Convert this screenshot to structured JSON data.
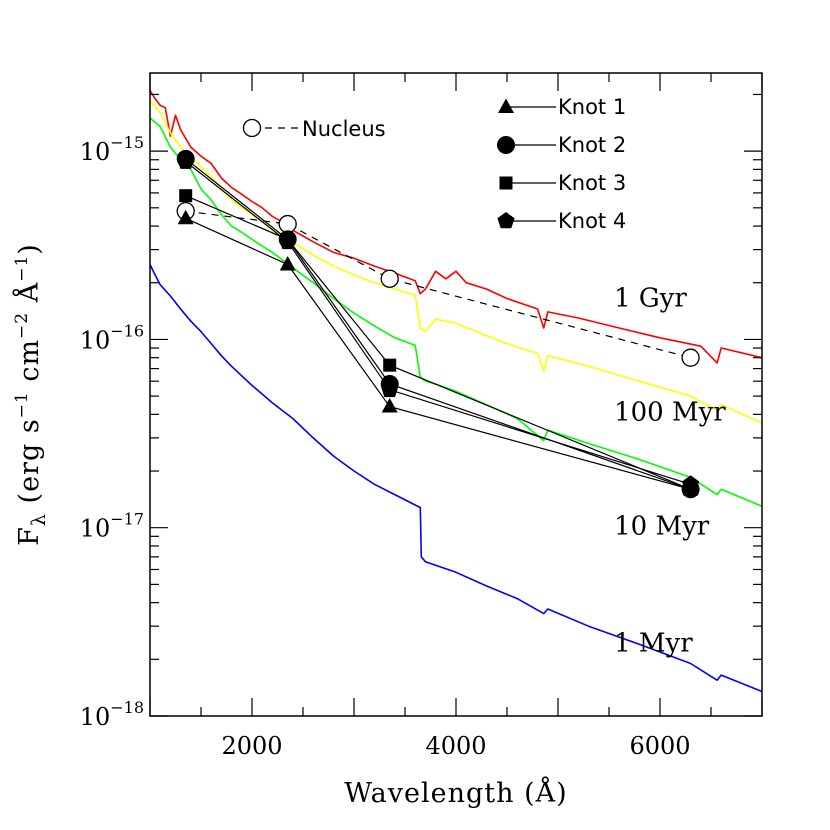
{
  "chart_data": {
    "type": "line",
    "xlabel": "Wavelength (Å)",
    "ylabel_parts": [
      "F",
      "λ",
      " (erg s",
      "−1",
      " cm",
      "−2",
      " Å",
      "−1",
      ")"
    ],
    "xlim": [
      1000,
      7000
    ],
    "ylim": [
      1e-18,
      2.6e-15
    ],
    "yscale": "log",
    "x_ticks": [
      {
        "value": 2000,
        "label": "2000"
      },
      {
        "value": 4000,
        "label": "4000"
      },
      {
        "value": 6000,
        "label": "6000"
      }
    ],
    "y_ticks": [
      {
        "value": 1e-15,
        "base": "10",
        "exp": "−15"
      },
      {
        "value": 1e-16,
        "base": "10",
        "exp": "−16"
      },
      {
        "value": 1e-17,
        "base": "10",
        "exp": "−17"
      },
      {
        "value": 1e-18,
        "base": "10",
        "exp": "−18"
      }
    ],
    "models": [
      {
        "label": "1 Gyr",
        "color": "#ff0000",
        "label_at": [
          5550,
          1.5e-16
        ],
        "points": [
          [
            1000,
            2.1e-15
          ],
          [
            1050,
            1.9e-15
          ],
          [
            1100,
            1.75e-15
          ],
          [
            1150,
            1.7e-15
          ],
          [
            1200,
            1.2e-15
          ],
          [
            1250,
            1.55e-15
          ],
          [
            1300,
            1.3e-15
          ],
          [
            1400,
            1.05e-15
          ],
          [
            1500,
            9.4e-16
          ],
          [
            1600,
            8.6e-16
          ],
          [
            1700,
            7.2e-16
          ],
          [
            1800,
            6.4e-16
          ],
          [
            1900,
            5.9e-16
          ],
          [
            2000,
            5.4e-16
          ],
          [
            2100,
            5e-16
          ],
          [
            2200,
            4.5e-16
          ],
          [
            2300,
            4.2e-16
          ],
          [
            2400,
            3.8e-16
          ],
          [
            2600,
            3.3e-16
          ],
          [
            2800,
            2.9e-16
          ],
          [
            3000,
            2.7e-16
          ],
          [
            3200,
            2.45e-16
          ],
          [
            3400,
            2.25e-16
          ],
          [
            3600,
            2.05e-16
          ],
          [
            3650,
            1.75e-16
          ],
          [
            3700,
            1.85e-16
          ],
          [
            3800,
            2.3e-16
          ],
          [
            3900,
            2.1e-16
          ],
          [
            4000,
            2.3e-16
          ],
          [
            4100,
            2e-16
          ],
          [
            4300,
            1.85e-16
          ],
          [
            4500,
            1.65e-16
          ],
          [
            4800,
            1.45e-16
          ],
          [
            4860,
            1.15e-16
          ],
          [
            4900,
            1.4e-16
          ],
          [
            5200,
            1.3e-16
          ],
          [
            5600,
            1.15e-16
          ],
          [
            6000,
            1.02e-16
          ],
          [
            6400,
            9.2e-17
          ],
          [
            6560,
            7.5e-17
          ],
          [
            6600,
            9e-17
          ],
          [
            7000,
            8e-17
          ]
        ]
      },
      {
        "label": "100 Myr",
        "color": "#ffff00",
        "label_at": [
          5550,
          3.7e-17
        ],
        "points": [
          [
            1000,
            1.85e-15
          ],
          [
            1100,
            1.6e-15
          ],
          [
            1200,
            1.25e-15
          ],
          [
            1300,
            1.05e-15
          ],
          [
            1400,
            9.3e-16
          ],
          [
            1500,
            8.3e-16
          ],
          [
            1600,
            7.3e-16
          ],
          [
            1700,
            6.3e-16
          ],
          [
            1800,
            5.5e-16
          ],
          [
            1900,
            5e-16
          ],
          [
            2000,
            4.6e-16
          ],
          [
            2200,
            3.9e-16
          ],
          [
            2400,
            3.3e-16
          ],
          [
            2600,
            2.8e-16
          ],
          [
            2800,
            2.45e-16
          ],
          [
            3000,
            2.2e-16
          ],
          [
            3200,
            2e-16
          ],
          [
            3400,
            1.85e-16
          ],
          [
            3600,
            1.72e-16
          ],
          [
            3650,
            1.15e-16
          ],
          [
            3700,
            1.1e-16
          ],
          [
            3800,
            1.28e-16
          ],
          [
            4000,
            1.22e-16
          ],
          [
            4200,
            1.1e-16
          ],
          [
            4500,
            9.5e-17
          ],
          [
            4800,
            8.4e-17
          ],
          [
            4860,
            6.8e-17
          ],
          [
            4900,
            8.2e-17
          ],
          [
            5300,
            7.2e-17
          ],
          [
            5800,
            6e-17
          ],
          [
            6300,
            5e-17
          ],
          [
            6560,
            4.2e-17
          ],
          [
            6600,
            4.5e-17
          ],
          [
            7000,
            3.6e-17
          ]
        ]
      },
      {
        "label": "10 Myr",
        "color": "#00ff00",
        "label_at": [
          5550,
          9.2e-18
        ],
        "points": [
          [
            1000,
            1.5e-15
          ],
          [
            1100,
            1.35e-15
          ],
          [
            1200,
            1.05e-15
          ],
          [
            1300,
            9e-16
          ],
          [
            1400,
            8e-16
          ],
          [
            1500,
            6.3e-16
          ],
          [
            1600,
            5.5e-16
          ],
          [
            1700,
            4.6e-16
          ],
          [
            1800,
            4e-16
          ],
          [
            1900,
            3.7e-16
          ],
          [
            2000,
            3.4e-16
          ],
          [
            2200,
            2.9e-16
          ],
          [
            2400,
            2.4e-16
          ],
          [
            2600,
            2e-16
          ],
          [
            2800,
            1.65e-16
          ],
          [
            3000,
            1.38e-16
          ],
          [
            3200,
            1.18e-16
          ],
          [
            3400,
            1.02e-16
          ],
          [
            3600,
            9.3e-17
          ],
          [
            3650,
            6.3e-17
          ],
          [
            3700,
            6e-17
          ],
          [
            3800,
            5.8e-17
          ],
          [
            4000,
            5.3e-17
          ],
          [
            4300,
            4.5e-17
          ],
          [
            4600,
            3.8e-17
          ],
          [
            4860,
            2.9e-17
          ],
          [
            4900,
            3.3e-17
          ],
          [
            5300,
            2.8e-17
          ],
          [
            5800,
            2.3e-17
          ],
          [
            6300,
            1.85e-17
          ],
          [
            6560,
            1.5e-17
          ],
          [
            6600,
            1.6e-17
          ],
          [
            7000,
            1.3e-17
          ]
        ]
      },
      {
        "label": "1 Myr",
        "color": "#0000ff",
        "label_at": [
          5550,
          2.2e-18
        ],
        "points": [
          [
            1000,
            2.5e-16
          ],
          [
            1050,
            2.2e-16
          ],
          [
            1100,
            1.95e-16
          ],
          [
            1200,
            1.7e-16
          ],
          [
            1300,
            1.45e-16
          ],
          [
            1400,
            1.25e-16
          ],
          [
            1500,
            1.1e-16
          ],
          [
            1600,
            9.5e-17
          ],
          [
            1700,
            8.2e-17
          ],
          [
            1800,
            7.2e-17
          ],
          [
            1900,
            6.4e-17
          ],
          [
            2000,
            5.7e-17
          ],
          [
            2200,
            4.6e-17
          ],
          [
            2400,
            3.8e-17
          ],
          [
            2600,
            3e-17
          ],
          [
            2800,
            2.4e-17
          ],
          [
            3000,
            2e-17
          ],
          [
            3200,
            1.7e-17
          ],
          [
            3400,
            1.5e-17
          ],
          [
            3600,
            1.32e-17
          ],
          [
            3650,
            1.28e-17
          ],
          [
            3660,
            7e-18
          ],
          [
            3700,
            6.6e-18
          ],
          [
            4000,
            5.8e-18
          ],
          [
            4300,
            4.9e-18
          ],
          [
            4600,
            4.2e-18
          ],
          [
            4860,
            3.5e-18
          ],
          [
            4900,
            3.7e-18
          ],
          [
            5300,
            3e-18
          ],
          [
            5800,
            2.4e-18
          ],
          [
            6300,
            1.9e-18
          ],
          [
            6560,
            1.55e-18
          ],
          [
            6600,
            1.65e-18
          ],
          [
            7000,
            1.35e-18
          ]
        ]
      }
    ],
    "series": [
      {
        "name": "Nucleus",
        "marker": "circle-open",
        "linestyle": "dashed",
        "x": [
          1350,
          2350,
          3350,
          6300
        ],
        "y": [
          4.8e-16,
          4.1e-16,
          2.1e-16,
          8e-17
        ]
      },
      {
        "name": "Knot 1",
        "marker": "triangle",
        "linestyle": "solid",
        "x": [
          1350,
          2350,
          3350,
          6300
        ],
        "y": [
          4.4e-16,
          2.5e-16,
          4.4e-17,
          1.6e-17
        ]
      },
      {
        "name": "Knot 2",
        "marker": "circle",
        "linestyle": "solid",
        "x": [
          1350,
          2350,
          3350,
          6300
        ],
        "y": [
          9.1e-16,
          3.4e-16,
          5.8e-17,
          1.6e-17
        ]
      },
      {
        "name": "Knot 3",
        "marker": "square",
        "linestyle": "solid",
        "x": [
          1350,
          2350,
          3350,
          6300
        ],
        "y": [
          5.8e-16,
          3.4e-16,
          7.3e-17,
          1.6e-17
        ]
      },
      {
        "name": "Knot 4",
        "marker": "pentagon",
        "linestyle": "solid",
        "x": [
          1350,
          2350,
          3350,
          6300
        ],
        "y": [
          8.8e-16,
          3.3e-16,
          5.4e-17,
          1.7e-17
        ]
      }
    ],
    "legend": {
      "placement": "top-right",
      "order": [
        "Knot 1",
        "Knot 2",
        "Knot 3",
        "Knot 4"
      ],
      "extra": "Nucleus"
    }
  }
}
